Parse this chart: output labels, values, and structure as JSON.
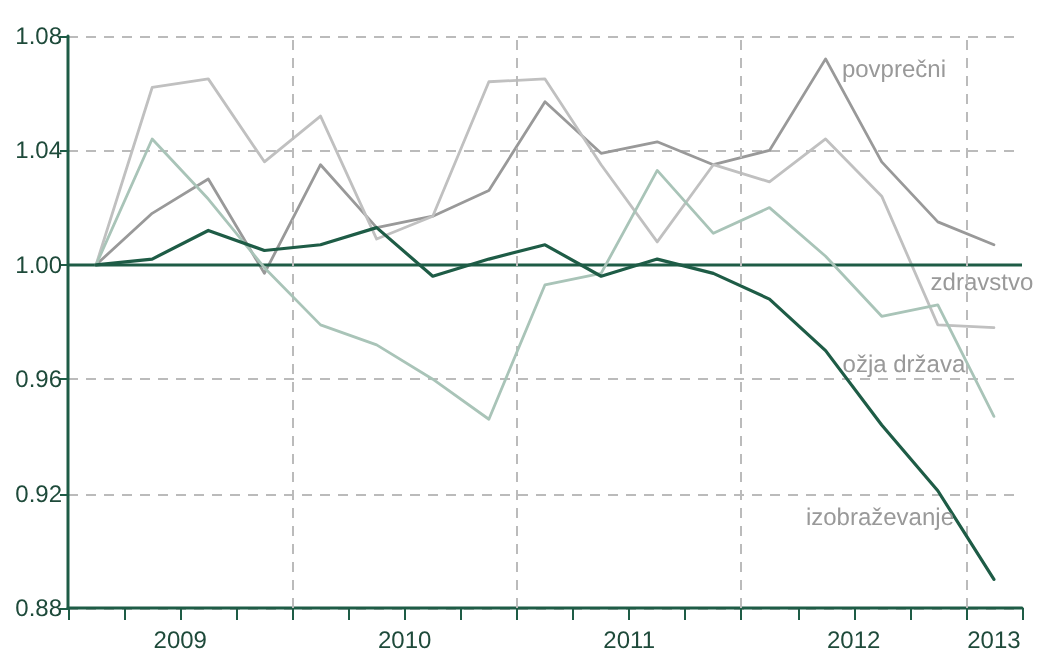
{
  "chart_data": {
    "type": "line",
    "x": [
      2009.125,
      2009.375,
      2009.625,
      2009.875,
      2010.125,
      2010.375,
      2010.625,
      2010.875,
      2011.125,
      2011.375,
      2011.625,
      2011.875,
      2012.125,
      2012.375,
      2012.625,
      2012.875,
      2013.125
    ],
    "series": [
      {
        "name": "povprečni",
        "color": "#999999",
        "values": [
          1.0,
          1.018,
          1.03,
          0.997,
          1.035,
          1.013,
          1.017,
          1.026,
          1.057,
          1.039,
          1.043,
          1.035,
          1.04,
          1.072,
          1.036,
          1.015,
          1.007
        ]
      },
      {
        "name": "zdravstvo",
        "color": "#c0c0c0",
        "values": [
          1.0,
          1.062,
          1.065,
          1.036,
          1.052,
          1.009,
          1.017,
          1.064,
          1.065,
          1.035,
          1.008,
          1.035,
          1.029,
          1.044,
          1.024,
          0.979,
          0.978
        ]
      },
      {
        "name": "ožja država",
        "color": "#a9c4b8",
        "values": [
          1.0,
          1.044,
          1.023,
          0.999,
          0.979,
          0.972,
          0.96,
          0.946,
          0.993,
          0.997,
          1.033,
          1.011,
          1.02,
          1.003,
          0.982,
          0.986,
          0.947
        ]
      },
      {
        "name": "izobraževanje",
        "color": "#1e5c46",
        "values": [
          1.0,
          1.002,
          1.012,
          1.005,
          1.007,
          1.013,
          0.996,
          1.002,
          1.007,
          0.996,
          1.002,
          0.997,
          0.988,
          0.97,
          0.944,
          0.921,
          0.89
        ]
      }
    ],
    "xlim": [
      2009,
      2013.25
    ],
    "xticks": [
      {
        "value": 2009,
        "label": null
      },
      {
        "value": 2009.25,
        "label": null
      },
      {
        "value": 2009.5,
        "label": "2009"
      },
      {
        "value": 2009.75,
        "label": null
      },
      {
        "value": 2010,
        "label": null
      },
      {
        "value": 2010.25,
        "label": null
      },
      {
        "value": 2010.5,
        "label": "2010"
      },
      {
        "value": 2010.75,
        "label": null
      },
      {
        "value": 2011,
        "label": null
      },
      {
        "value": 2011.25,
        "label": null
      },
      {
        "value": 2011.5,
        "label": "2011"
      },
      {
        "value": 2011.75,
        "label": null
      },
      {
        "value": 2012,
        "label": null
      },
      {
        "value": 2012.25,
        "label": null
      },
      {
        "value": 2012.5,
        "label": "2012"
      },
      {
        "value": 2012.75,
        "label": null
      },
      {
        "value": 2013,
        "label": null
      },
      {
        "value": 2013.125,
        "label": "2013"
      },
      {
        "value": 2013.25,
        "label": null
      }
    ],
    "ylim": [
      0.88,
      1.08
    ],
    "yticks": [
      0.88,
      0.92,
      0.96,
      {
        "value": 1.0,
        "label": "1.00"
      },
      1.04,
      1.08
    ],
    "grid": "y",
    "legend": false,
    "marker": "none",
    "line_style": "solid",
    "ref_lines": [
      {
        "axis": "y",
        "value": 1.0,
        "color": "#1e5c46",
        "line_style": "solid"
      },
      {
        "axis": "x",
        "value": 2010,
        "color": "#bbbbbb",
        "line_style": "dashed"
      },
      {
        "axis": "x",
        "value": 2011,
        "color": "#bbbbbb",
        "line_style": "dashed"
      },
      {
        "axis": "x",
        "value": 2012,
        "color": "#bbbbbb",
        "line_style": "dashed"
      },
      {
        "axis": "x",
        "value": 2013,
        "color": "#bbbbbb",
        "line_style": "dashed"
      }
    ]
  }
}
